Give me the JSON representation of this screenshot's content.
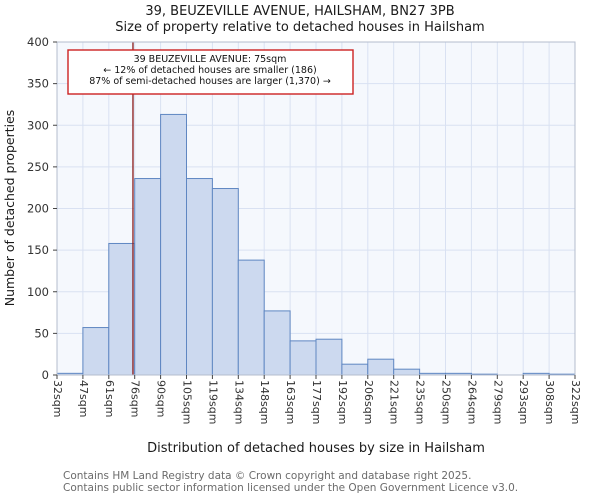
{
  "annotation": {
    "line1": "39 BEUZEVILLE AVENUE: 75sqm",
    "line2": "← 12% of detached houses are smaller (186)",
    "line3": "87% of semi-detached houses are larger (1,370) →"
  },
  "footer": {
    "line1": "Contains HM Land Registry data © Crown copyright and database right 2025.",
    "line2": "Contains public sector information licensed under the Open Government Licence v3.0."
  },
  "chart_data": {
    "type": "bar",
    "title": "39, BEUZEVILLE AVENUE, HAILSHAM, BN27 3PB",
    "subtitle": "Size of property relative to detached houses in Hailsham",
    "xlabel": "Distribution of detached houses by size in Hailsham",
    "ylabel": "Number of detached properties",
    "bin_labels": [
      "32sqm",
      "47sqm",
      "61sqm",
      "76sqm",
      "90sqm",
      "105sqm",
      "119sqm",
      "134sqm",
      "148sqm",
      "163sqm",
      "177sqm",
      "192sqm",
      "206sqm",
      "221sqm",
      "235sqm",
      "250sqm",
      "264sqm",
      "279sqm",
      "293sqm",
      "308sqm",
      "322sqm"
    ],
    "bin_edges_sqm": [
      32,
      47,
      61,
      76,
      90,
      105,
      119,
      134,
      148,
      163,
      177,
      192,
      206,
      221,
      235,
      250,
      264,
      279,
      293,
      308,
      322
    ],
    "values": [
      2,
      57,
      158,
      236,
      313,
      236,
      224,
      138,
      77,
      41,
      43,
      13,
      19,
      7,
      2,
      2,
      1,
      0,
      2,
      1
    ],
    "marker_sqm": 75,
    "ylim": [
      0,
      400
    ],
    "ytick_step": 50,
    "grid": true,
    "legend": false,
    "colors": {
      "bar_fill": "#ccd9ef",
      "bar_stroke": "#5f87c2",
      "marker_line": "#8b1a1a",
      "annotation_border": "#cc2222",
      "grid": "#d9e1f2",
      "plot_bg": "#f5f8fd",
      "plot_border": "#b4bdcd",
      "text": "#1a1a1a",
      "tick_text": "#333333",
      "footer_text": "#6b6b6b"
    }
  }
}
